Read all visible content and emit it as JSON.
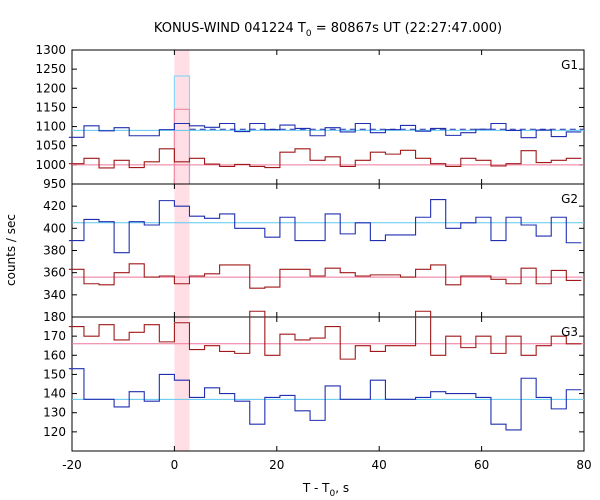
{
  "chart_data": {
    "type": "line",
    "title": "KONUS-WIND 041224 T",
    "title_sub": "0",
    "title_rest": " = 80867s UT (22:27:47.000)",
    "xlabel": "T - T",
    "xlabel_sub": "0",
    "xlabel_rest": ", s",
    "ylabel": "counts / sec",
    "xlim": [
      -20,
      80
    ],
    "xticks": [
      -20,
      0,
      20,
      40,
      60,
      80
    ],
    "x_tick_labels": [
      "-20",
      "0",
      "20",
      "40",
      "60",
      "80"
    ],
    "highlight_band": [
      0,
      2.944
    ],
    "grid": false,
    "colors": {
      "blue": "#1f2fb0",
      "red": "#a01818",
      "bg_blue": "#5bc8f0",
      "bg_red": "#ee7799",
      "highlight": "#ffb6c8",
      "light_blue_bar": "#8ed8f5",
      "pink_bar": "#f08fa8"
    },
    "panels": [
      {
        "name": "G1",
        "ylim": [
          950,
          1300
        ],
        "yticks": [
          950,
          1000,
          1050,
          1100,
          1150,
          1200,
          1250,
          1300
        ],
        "x": [
          -19.136,
          -16.192,
          -13.248,
          -10.304,
          -7.36,
          -4.416,
          -1.472,
          1.472,
          4.416,
          7.36,
          10.304,
          13.248,
          16.192,
          19.136,
          22.08,
          25.024,
          27.968,
          30.912,
          33.856,
          36.8,
          39.744,
          42.688,
          45.632,
          48.576,
          51.52,
          54.464,
          57.408,
          60.352,
          63.296,
          66.24,
          69.184,
          72.128,
          75.072,
          78.016
        ],
        "series": [
          {
            "name": "",
            "color": "#1f2fb0",
            "values": [
              1072,
              1102,
              1089,
              1097,
              1076,
              1076,
              1092,
              1108,
              1102,
              1098,
              1108,
              1087,
              1108,
              1092,
              1104,
              1095,
              1076,
              1097,
              1086,
              1108,
              1084,
              1092,
              1103,
              1088,
              1095,
              1077,
              1084,
              1093,
              1108,
              1090,
              1071,
              1091,
              1074,
              1086
            ],
            "background": 1090
          },
          {
            "name": "",
            "color": "#a01818",
            "values": [
              1003,
              1017,
              992,
              1012,
              993,
              1008,
              1042,
              1008,
              1017,
              1002,
              996,
              1001,
              996,
              993,
              1033,
              1042,
              1012,
              1021,
              996,
              1012,
              1033,
              1028,
              1038,
              1017,
              1003,
              996,
              1017,
              1012,
              997,
              1003,
              1037,
              1006,
              1012,
              1017
            ],
            "background": 1000
          }
        ],
        "burst_bins": [
          {
            "x": 1.472,
            "values": [
              1232,
              1145
            ]
          }
        ],
        "dashed_from": 3.0
      },
      {
        "name": "G2",
        "ylim": [
          320,
          440
        ],
        "yticks": [
          320,
          340,
          360,
          380,
          400,
          420
        ],
        "x": [
          -19.136,
          -16.192,
          -13.248,
          -10.304,
          -7.36,
          -4.416,
          -1.472,
          1.472,
          4.416,
          7.36,
          10.304,
          13.248,
          16.192,
          19.136,
          22.08,
          25.024,
          27.968,
          30.912,
          33.856,
          36.8,
          39.744,
          42.688,
          45.632,
          48.576,
          51.52,
          54.464,
          57.408,
          60.352,
          63.296,
          66.24,
          69.184,
          72.128,
          75.072,
          78.016
        ],
        "series": [
          {
            "name": "",
            "color": "#1f2fb0",
            "values": [
              389,
              408,
              406,
              378,
              406,
              403,
              425,
              420,
              411,
              409,
              413,
              400,
              400,
              392,
              410,
              389,
              389,
              413,
              395,
              405,
              389,
              394,
              394,
              410,
              426,
              400,
              405,
              410,
              389,
              410,
              403,
              393,
              410,
              387
            ],
            "background": 405
          },
          {
            "name": "",
            "color": "#a01818",
            "values": [
              363,
              350,
              349,
              360,
              368,
              356,
              357,
              350,
              357,
              359,
              367,
              367,
              346,
              347,
              363,
              363,
              357,
              364,
              360,
              357,
              358,
              358,
              356,
              363,
              367,
              349,
              357,
              357,
              354,
              350,
              364,
              350,
              362,
              353
            ],
            "background": 356
          }
        ]
      },
      {
        "name": "G3",
        "ylim": [
          110,
          180
        ],
        "yticks": [
          110,
          120,
          130,
          140,
          150,
          160,
          170,
          180
        ],
        "x": [
          -19.136,
          -16.192,
          -13.248,
          -10.304,
          -7.36,
          -4.416,
          -1.472,
          1.472,
          4.416,
          7.36,
          10.304,
          13.248,
          16.192,
          19.136,
          22.08,
          25.024,
          27.968,
          30.912,
          33.856,
          36.8,
          39.744,
          42.688,
          45.632,
          48.576,
          51.52,
          54.464,
          57.408,
          60.352,
          63.296,
          66.24,
          69.184,
          72.128,
          75.072,
          78.016
        ],
        "series": [
          {
            "name": "",
            "color": "#1f2fb0",
            "values": [
              153,
              137,
              137,
              133,
              141,
              136,
              150,
              147,
              138,
              143,
              140,
              136,
              124,
              138,
              139,
              131,
              126,
              144,
              137,
              137,
              147,
              137,
              137,
              138,
              141,
              140,
              140,
              138,
              124,
              121,
              148,
              138,
              132,
              142
            ],
            "background": 137
          },
          {
            "name": "",
            "color": "#a01818",
            "values": [
              175,
              170,
              176,
              168,
              172,
              176,
              167,
              177,
              163,
              165,
              162,
              161,
              183,
              160,
              171,
              168,
              169,
              175,
              158,
              165,
              162,
              165,
              165,
              183,
              160,
              170,
              164,
              170,
              161,
              170,
              160,
              165,
              170,
              166
            ],
            "background": 166
          }
        ]
      }
    ]
  }
}
